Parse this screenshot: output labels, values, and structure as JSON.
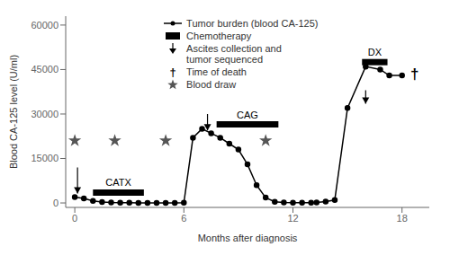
{
  "chart_data": {
    "type": "line",
    "xlabel": "Months after diagnosis",
    "ylabel": "Blood CA-125 level (U/ml)",
    "xlim": [
      -0.5,
      19.5
    ],
    "ylim": [
      -1500,
      63000
    ],
    "xticks": [
      0,
      6,
      12,
      18
    ],
    "yticks": [
      0,
      15000,
      30000,
      45000,
      60000
    ],
    "grid": false,
    "legend": "upper left",
    "x": [
      0,
      0.5,
      1,
      1.5,
      2,
      2.5,
      3,
      3.5,
      4,
      4.5,
      5,
      5.5,
      6,
      6.5,
      7,
      7.5,
      8,
      8.5,
      9,
      9.5,
      10,
      10.5,
      11,
      11.5,
      12,
      12.5,
      13,
      13.3,
      13.8,
      14.3,
      15.0,
      16.0,
      16.8,
      17.3,
      18.0
    ],
    "series": [
      {
        "name": "Tumor burden (blood CA-125)",
        "color": "#000000",
        "marker": "circle",
        "line_style": "solid",
        "values": [
          2000,
          1500,
          700,
          350,
          150,
          100,
          80,
          50,
          50,
          50,
          50,
          50,
          80,
          22000,
          25000,
          23500,
          22000,
          20000,
          18000,
          13000,
          6000,
          1800,
          400,
          150,
          80,
          80,
          100,
          200,
          500,
          1000,
          32000,
          46000,
          45000,
          43000,
          43000
        ]
      }
    ],
    "chemotherapy": {
      "name": "Chemotherapy",
      "color": "#000000",
      "bars": [
        {
          "x_start": 1.0,
          "x_end": 3.8,
          "y": 3500,
          "label": "CATX"
        },
        {
          "x_start": 7.8,
          "x_end": 11.2,
          "y": 26500,
          "label": "CAG"
        },
        {
          "x_start": 15.8,
          "x_end": 17.2,
          "y": 47500,
          "label": "DX"
        }
      ]
    },
    "ascites": {
      "name": "Ascites collection and\ntumor sequenced",
      "color": "#000000",
      "arrows": [
        {
          "x": 0.15,
          "y_start": 12000,
          "y_end": 3200
        },
        {
          "x": 7.3,
          "y_start": 30000,
          "y_end": 24500
        },
        {
          "x": 16.0,
          "y_start": 38000,
          "y_end": 33500
        }
      ]
    },
    "death": {
      "name": "Time of death",
      "symbol": "†",
      "x": 18.7,
      "y": 43500
    },
    "blood_draws": {
      "name": "Blood draw",
      "color": "#555555",
      "marker": "star",
      "points": [
        {
          "x": 0.0,
          "y": 21000
        },
        {
          "x": 2.2,
          "y": 21000
        },
        {
          "x": 5.0,
          "y": 21000
        },
        {
          "x": 10.5,
          "y": 21000
        }
      ]
    }
  }
}
